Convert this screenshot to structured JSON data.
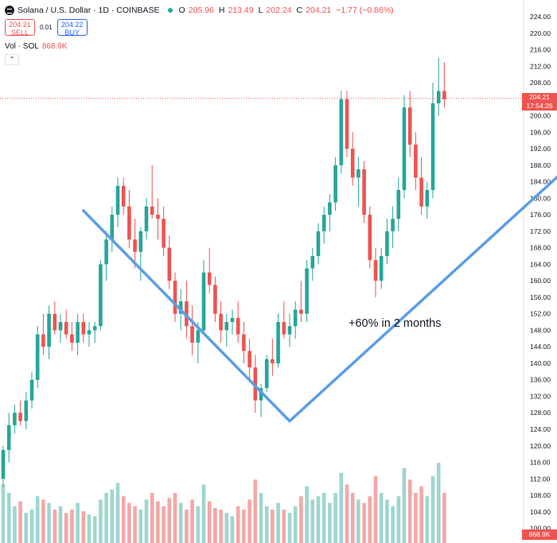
{
  "header": {
    "symbol": "Solana / U.S. Dollar · 1D · COINBASE",
    "o_label": "O",
    "o": "205.96",
    "h_label": "H",
    "h": "213.49",
    "l_label": "L",
    "l": "202.24",
    "c_label": "C",
    "c": "204.21",
    "change": "−1.77 (−0.86%)"
  },
  "trade": {
    "sell_price": "204.21",
    "sell_label": "SELL",
    "spread": "0.01",
    "buy_price": "204.22",
    "buy_label": "BUY"
  },
  "volume_label": {
    "name": "Vol · SOL",
    "value": "868.9K"
  },
  "collapse_icon": "chevron-up-icon",
  "last_price": {
    "price": "204.21",
    "countdown": "17:54:26"
  },
  "volume_badge": "868.9K",
  "colors": {
    "up": "#26a69a",
    "down": "#ef5350",
    "up_vol": "#9ed6d0",
    "down_vol": "#f4a7a6",
    "annotation": "#5b9ee6"
  },
  "chart_data": {
    "type": "candlestick",
    "y_ticks": [
      "224.00",
      "220.00",
      "216.00",
      "212.00",
      "208.00",
      "204.00",
      "200.00",
      "196.00",
      "192.00",
      "188.00",
      "184.00",
      "180.00",
      "176.00",
      "172.00",
      "168.00",
      "164.00",
      "160.00",
      "156.00",
      "152.00",
      "148.00",
      "144.00",
      "140.00",
      "136.00",
      "132.00",
      "128.00",
      "124.00",
      "120.00",
      "116.00",
      "112.00",
      "108.00",
      "104.00",
      "100.00"
    ],
    "ylim": [
      100,
      224
    ],
    "last_price_line": 204.21,
    "annotation_text": "+60% in 2 months",
    "v_pattern": [
      {
        "candle": 14,
        "price": 177
      },
      {
        "candle": 50,
        "price": 126
      },
      {
        "candle": 110,
        "price": 202
      }
    ],
    "candles": [
      [
        112,
        120,
        110,
        119
      ],
      [
        119,
        128,
        116,
        125
      ],
      [
        125,
        130,
        123,
        128
      ],
      [
        128,
        131,
        125,
        126
      ],
      [
        126,
        133,
        124,
        131
      ],
      [
        131,
        138,
        129,
        136
      ],
      [
        136,
        149,
        134,
        147
      ],
      [
        147,
        152,
        142,
        144
      ],
      [
        144,
        154,
        141,
        152
      ],
      [
        152,
        155,
        147,
        148
      ],
      [
        148,
        152,
        145,
        150
      ],
      [
        150,
        153,
        146,
        147
      ],
      [
        147,
        150,
        143,
        145
      ],
      [
        145,
        152,
        142,
        150
      ],
      [
        150,
        152,
        145,
        147
      ],
      [
        147,
        150,
        144,
        148
      ],
      [
        148,
        150,
        145,
        149
      ],
      [
        149,
        165,
        148,
        164
      ],
      [
        164,
        172,
        160,
        170
      ],
      [
        170,
        178,
        167,
        176
      ],
      [
        176,
        185,
        173,
        183
      ],
      [
        183,
        185,
        176,
        178
      ],
      [
        178,
        182,
        168,
        170
      ],
      [
        170,
        175,
        163,
        167
      ],
      [
        167,
        173,
        160,
        172
      ],
      [
        172,
        180,
        170,
        178
      ],
      [
        178,
        188,
        175,
        176
      ],
      [
        176,
        180,
        170,
        175
      ],
      [
        175,
        178,
        166,
        168
      ],
      [
        168,
        171,
        158,
        160
      ],
      [
        160,
        162,
        150,
        152
      ],
      [
        152,
        158,
        148,
        155
      ],
      [
        155,
        160,
        146,
        149
      ],
      [
        149,
        154,
        142,
        145
      ],
      [
        145,
        150,
        140,
        148
      ],
      [
        148,
        165,
        147,
        162
      ],
      [
        162,
        168,
        157,
        159
      ],
      [
        159,
        161,
        150,
        152
      ],
      [
        152,
        155,
        145,
        148
      ],
      [
        148,
        152,
        144,
        150
      ],
      [
        150,
        153,
        147,
        151
      ],
      [
        151,
        155,
        145,
        147
      ],
      [
        147,
        150,
        140,
        143
      ],
      [
        143,
        146,
        136,
        139
      ],
      [
        139,
        142,
        128,
        131
      ],
      [
        131,
        135,
        127,
        134
      ],
      [
        134,
        142,
        133,
        141
      ],
      [
        141,
        146,
        137,
        140
      ],
      [
        140,
        152,
        139,
        150
      ],
      [
        150,
        155,
        146,
        147
      ],
      [
        147,
        152,
        144,
        149
      ],
      [
        149,
        155,
        146,
        153
      ],
      [
        153,
        160,
        150,
        152
      ],
      [
        152,
        165,
        150,
        163
      ],
      [
        163,
        168,
        160,
        166
      ],
      [
        166,
        174,
        164,
        172
      ],
      [
        172,
        178,
        169,
        176
      ],
      [
        176,
        181,
        172,
        179
      ],
      [
        179,
        190,
        177,
        188
      ],
      [
        188,
        206,
        186,
        204
      ],
      [
        204,
        206,
        190,
        192
      ],
      [
        192,
        196,
        183,
        185
      ],
      [
        185,
        190,
        178,
        187
      ],
      [
        187,
        189,
        174,
        176
      ],
      [
        176,
        178,
        163,
        165
      ],
      [
        165,
        168,
        156,
        160
      ],
      [
        160,
        168,
        158,
        166
      ],
      [
        166,
        175,
        164,
        172
      ],
      [
        172,
        178,
        168,
        175
      ],
      [
        175,
        185,
        172,
        182
      ],
      [
        182,
        205,
        180,
        202
      ],
      [
        202,
        206,
        190,
        193
      ],
      [
        193,
        196,
        182,
        185
      ],
      [
        185,
        190,
        176,
        178
      ],
      [
        178,
        184,
        175,
        182
      ],
      [
        182,
        208,
        180,
        203
      ],
      [
        203,
        214,
        200,
        206
      ],
      [
        206,
        213,
        202,
        204
      ]
    ],
    "volumes": [
      35,
      30,
      22,
      25,
      18,
      20,
      28,
      26,
      24,
      20,
      22,
      18,
      20,
      24,
      19,
      17,
      16,
      26,
      30,
      32,
      36,
      28,
      24,
      22,
      20,
      26,
      30,
      25,
      22,
      27,
      30,
      24,
      20,
      26,
      22,
      35,
      25,
      21,
      20,
      18,
      16,
      22,
      20,
      26,
      38,
      30,
      22,
      20,
      24,
      20,
      18,
      22,
      28,
      34,
      26,
      28,
      30,
      24,
      30,
      42,
      35,
      30,
      26,
      24,
      28,
      40,
      30,
      26,
      22,
      28,
      45,
      38,
      30,
      34,
      28,
      40,
      48,
      30
    ]
  }
}
